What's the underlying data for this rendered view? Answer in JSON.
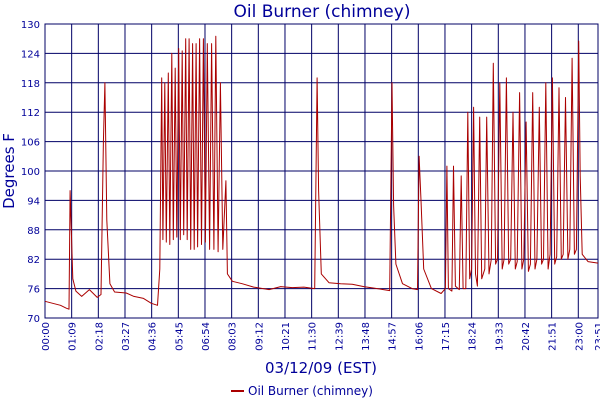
{
  "chart_data": {
    "type": "line",
    "title": "Oil Burner (chimney)",
    "xlabel": "03/12/09 (EST)",
    "ylabel": "Degrees F",
    "ylim": [
      70,
      130
    ],
    "yticks": [
      70,
      76,
      82,
      88,
      94,
      100,
      106,
      112,
      118,
      124,
      130
    ],
    "xlim": [
      "00:00",
      "23:51"
    ],
    "xticks": [
      "00:00",
      "01:09",
      "02:18",
      "03:27",
      "04:36",
      "05:45",
      "06:54",
      "08:03",
      "09:12",
      "10:21",
      "11:30",
      "12:39",
      "13:48",
      "14:57",
      "16:06",
      "17:15",
      "18:24",
      "19:33",
      "20:42",
      "21:51",
      "23:00",
      "23:51"
    ],
    "grid": true,
    "legend_position": "bottom-center",
    "series": [
      {
        "name": "Oil Burner (chimney)",
        "color": "#aa0000",
        "points": [
          [
            "00:00",
            73.4
          ],
          [
            "00:20",
            73.0
          ],
          [
            "00:40",
            72.6
          ],
          [
            "00:55",
            72.0
          ],
          [
            "01:02",
            71.8
          ],
          [
            "01:05",
            96.0
          ],
          [
            "01:08",
            88.0
          ],
          [
            "01:12",
            78.0
          ],
          [
            "01:20",
            75.5
          ],
          [
            "01:35",
            74.4
          ],
          [
            "01:55",
            75.8
          ],
          [
            "02:15",
            74.2
          ],
          [
            "02:25",
            74.8
          ],
          [
            "02:31",
            106.0
          ],
          [
            "02:35",
            118.0
          ],
          [
            "02:40",
            90.0
          ],
          [
            "02:48",
            77.0
          ],
          [
            "03:00",
            75.3
          ],
          [
            "03:30",
            75.1
          ],
          [
            "03:50",
            74.4
          ],
          [
            "04:15",
            74.0
          ],
          [
            "04:35",
            73.0
          ],
          [
            "04:51",
            72.6
          ],
          [
            "04:57",
            80.0
          ],
          [
            "05:02",
            119.0
          ],
          [
            "05:05",
            86.0
          ],
          [
            "05:10",
            118.0
          ],
          [
            "05:14",
            85.5
          ],
          [
            "05:19",
            120.0
          ],
          [
            "05:23",
            85.0
          ],
          [
            "05:28",
            124.0
          ],
          [
            "05:32",
            86.0
          ],
          [
            "05:37",
            121.0
          ],
          [
            "05:41",
            86.5
          ],
          [
            "05:46",
            125.0
          ],
          [
            "05:50",
            86.0
          ],
          [
            "05:55",
            124.5
          ],
          [
            "05:59",
            87.0
          ],
          [
            "06:04",
            127.0
          ],
          [
            "06:08",
            86.0
          ],
          [
            "06:13",
            127.0
          ],
          [
            "06:17",
            84.0
          ],
          [
            "06:22",
            126.0
          ],
          [
            "06:26",
            84.0
          ],
          [
            "06:31",
            126.0
          ],
          [
            "06:35",
            84.5
          ],
          [
            "06:40",
            127.0
          ],
          [
            "06:45",
            85.0
          ],
          [
            "06:50",
            127.0
          ],
          [
            "06:55",
            85.5
          ],
          [
            "07:00",
            126.0
          ],
          [
            "07:06",
            84.0
          ],
          [
            "07:11",
            126.0
          ],
          [
            "07:17",
            84.0
          ],
          [
            "07:22",
            127.5
          ],
          [
            "07:28",
            83.5
          ],
          [
            "07:34",
            118.0
          ],
          [
            "07:40",
            84.0
          ],
          [
            "07:48",
            98.0
          ],
          [
            "07:52",
            79.0
          ],
          [
            "08:05",
            77.5
          ],
          [
            "08:30",
            77.0
          ],
          [
            "09:00",
            76.3
          ],
          [
            "09:40",
            75.8
          ],
          [
            "10:10",
            76.4
          ],
          [
            "10:40",
            76.2
          ],
          [
            "11:10",
            76.3
          ],
          [
            "11:38",
            76.0
          ],
          [
            "11:44",
            119.0
          ],
          [
            "11:48",
            96.0
          ],
          [
            "11:55",
            79.0
          ],
          [
            "12:15",
            77.2
          ],
          [
            "12:45",
            77.0
          ],
          [
            "13:15",
            76.9
          ],
          [
            "13:45",
            76.4
          ],
          [
            "14:20",
            76.0
          ],
          [
            "14:52",
            75.6
          ],
          [
            "14:58",
            118.0
          ],
          [
            "15:02",
            93.0
          ],
          [
            "15:08",
            81.0
          ],
          [
            "15:25",
            77.0
          ],
          [
            "15:50",
            76.0
          ],
          [
            "16:04",
            75.8
          ],
          [
            "16:08",
            103.0
          ],
          [
            "16:13",
            94.0
          ],
          [
            "16:20",
            80.0
          ],
          [
            "16:40",
            76.0
          ],
          [
            "17:05",
            75.0
          ],
          [
            "17:16",
            76.0
          ],
          [
            "17:20",
            101.0
          ],
          [
            "17:24",
            76.0
          ],
          [
            "17:33",
            75.5
          ],
          [
            "17:37",
            101.0
          ],
          [
            "17:42",
            76.5
          ],
          [
            "17:52",
            75.8
          ],
          [
            "17:57",
            99.0
          ],
          [
            "18:02",
            76.0
          ],
          [
            "18:09",
            76.0
          ],
          [
            "18:14",
            112.0
          ],
          [
            "18:19",
            78.0
          ],
          [
            "18:24",
            80.0
          ],
          [
            "18:29",
            113.0
          ],
          [
            "18:34",
            79.0
          ],
          [
            "18:39",
            76.5
          ],
          [
            "18:45",
            111.0
          ],
          [
            "18:50",
            78.0
          ],
          [
            "18:58",
            80.0
          ],
          [
            "19:03",
            111.0
          ],
          [
            "19:09",
            79.0
          ],
          [
            "19:15",
            82.0
          ],
          [
            "19:20",
            122.0
          ],
          [
            "19:26",
            81.0
          ],
          [
            "19:31",
            82.0
          ],
          [
            "19:37",
            118.0
          ],
          [
            "19:43",
            80.0
          ],
          [
            "19:48",
            82.0
          ],
          [
            "19:54",
            119.0
          ],
          [
            "20:00",
            81.0
          ],
          [
            "20:05",
            82.0
          ],
          [
            "20:11",
            112.0
          ],
          [
            "20:17",
            80.0
          ],
          [
            "20:22",
            81.5
          ],
          [
            "20:28",
            116.0
          ],
          [
            "20:34",
            80.0
          ],
          [
            "20:39",
            82.0
          ],
          [
            "20:45",
            110.0
          ],
          [
            "20:51",
            79.5
          ],
          [
            "20:56",
            81.0
          ],
          [
            "21:02",
            116.0
          ],
          [
            "21:08",
            80.0
          ],
          [
            "21:13",
            82.0
          ],
          [
            "21:19",
            113.0
          ],
          [
            "21:25",
            81.0
          ],
          [
            "21:30",
            82.0
          ],
          [
            "21:36",
            118.0
          ],
          [
            "21:42",
            80.0
          ],
          [
            "21:47",
            83.0
          ],
          [
            "21:53",
            119.0
          ],
          [
            "21:59",
            81.0
          ],
          [
            "22:04",
            82.5
          ],
          [
            "22:10",
            117.0
          ],
          [
            "22:16",
            82.0
          ],
          [
            "22:21",
            83.0
          ],
          [
            "22:27",
            115.0
          ],
          [
            "22:33",
            82.0
          ],
          [
            "22:38",
            84.0
          ],
          [
            "22:44",
            123.0
          ],
          [
            "22:50",
            83.0
          ],
          [
            "22:55",
            84.0
          ],
          [
            "23:01",
            126.5
          ],
          [
            "23:05",
            99.0
          ],
          [
            "23:10",
            83.0
          ],
          [
            "23:25",
            81.5
          ],
          [
            "23:51",
            81.2
          ]
        ]
      }
    ]
  }
}
